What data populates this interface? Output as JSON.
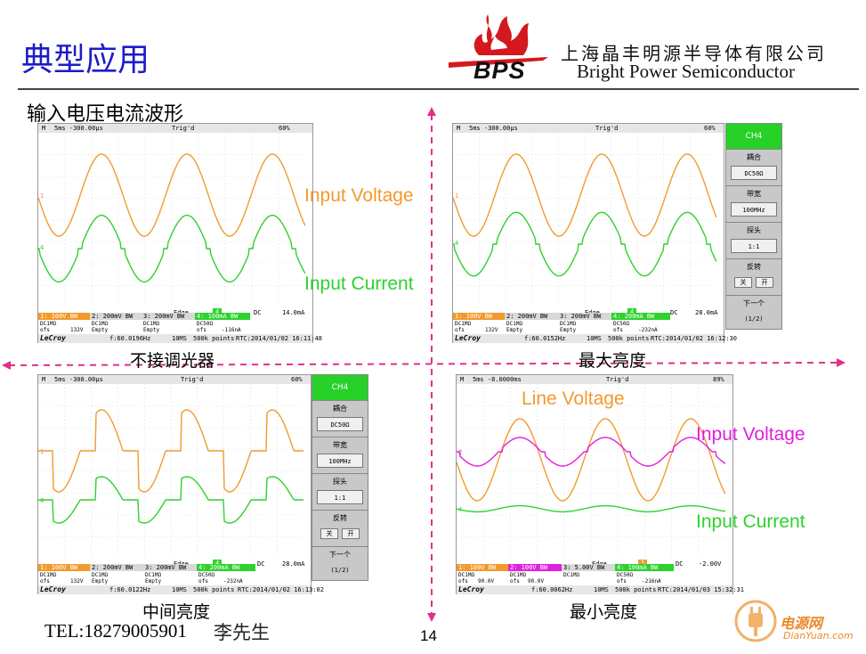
{
  "slide": {
    "title": "典型应用",
    "section": "输入电压电流波形",
    "page_number": "14"
  },
  "company": {
    "logo_text": "BPS",
    "name_cn": "上海晶丰明源半导体有限公司",
    "name_en": "Bright Power Semiconductor"
  },
  "contact": {
    "tel": "TEL:18279005901",
    "name": "李先生"
  },
  "watermark": {
    "name": "电源网",
    "url": "DianYuan.com"
  },
  "colors": {
    "title_blue": "#1c1cc8",
    "orange_trace": "#f29a2e",
    "green_trace": "#2ed12e",
    "magenta_trace": "#e020e0",
    "axis_pink": "#e0308a"
  },
  "panels": [
    {
      "caption": "不接调光器",
      "scope": {
        "timebase": "5ms  -300.00µs",
        "trig": "Trig'd",
        "battery": "60%",
        "edge": "Edge",
        "edge_ch": "4",
        "coupling": "DC",
        "level": "14.0mA",
        "ch_bar": [
          "1: 100V BW",
          "2: 200mV BW",
          "3: 200mV BW",
          "4: 100mA BW"
        ],
        "cells": [
          "DC1MΩ",
          "DC1MΩ",
          "DC1MΩ",
          "DC50Ω",
          "ofs",
          "132V",
          "Empty",
          "Empty",
          "ofs",
          "-116nA"
        ],
        "freq": "f:60.0196Hz",
        "mem": "10MS",
        "points": "500k points",
        "rtc": "RTC:2014/01/02 16:11:48",
        "brand": "LeCroy"
      },
      "labels": [
        "Input Voltage",
        "Input Current"
      ]
    },
    {
      "caption": "最大亮度",
      "scope": {
        "timebase": "5ms  -300.00µs",
        "trig": "Trig'd",
        "battery": "60%",
        "edge": "Edge",
        "edge_ch": "4",
        "coupling": "DC",
        "level": "28.0mA",
        "ch_bar": [
          "1: 100V BW",
          "2: 200mV BW",
          "3: 200mV BW",
          "4: 200mA BW"
        ],
        "cells": [
          "DC1MΩ",
          "DC1MΩ",
          "DC1MΩ",
          "DC50Ω",
          "ofs",
          "132V",
          "Empty",
          "Empty",
          "ofs",
          "-232nA"
        ],
        "freq": "f:60.0152Hz",
        "mem": "10MS",
        "points": "500k points",
        "rtc": "RTC:2014/01/02 16:12:30",
        "brand": "LeCroy"
      },
      "menu": {
        "head": "CH4",
        "items": [
          {
            "label": "耦合",
            "value": "DC50Ω"
          },
          {
            "label": "带宽",
            "value": "100MHz"
          },
          {
            "label": "探头",
            "value": "1:1"
          },
          {
            "label": "反转",
            "btn1": "关",
            "btn2": "开"
          },
          {
            "label": "下一个",
            "value": "(1/2)"
          }
        ]
      }
    },
    {
      "caption": "中间亮度",
      "scope": {
        "timebase": "5ms  -300.00µs",
        "trig": "Trig'd",
        "battery": "60%",
        "edge": "Edge",
        "edge_ch": "4",
        "coupling": "DC",
        "level": "28.0mA",
        "ch_bar": [
          "1: 100V BW",
          "2: 200mV BW",
          "3: 200mV BW",
          "4: 200mA BW"
        ],
        "cells": [
          "DC1MΩ",
          "DC1MΩ",
          "DC1MΩ",
          "DC50Ω",
          "ofs",
          "132V",
          "Empty",
          "Empty",
          "ofs",
          "-232nA"
        ],
        "freq": "f:60.0122Hz",
        "mem": "10MS",
        "points": "500k points",
        "rtc": "RTC:2014/01/02 16:13:02",
        "brand": "LeCroy"
      },
      "menu": {
        "head": "CH4",
        "items": [
          {
            "label": "耦合",
            "value": "DC50Ω"
          },
          {
            "label": "带宽",
            "value": "100MHz"
          },
          {
            "label": "探头",
            "value": "1:1"
          },
          {
            "label": "反转",
            "btn1": "关",
            "btn2": "开"
          },
          {
            "label": "下一个",
            "value": "(1/2)"
          }
        ]
      }
    },
    {
      "caption": "最小亮度",
      "scope": {
        "timebase": "5ms  -8.0000ms",
        "trig": "Trig'd",
        "battery": "89%",
        "edge": "Edge",
        "edge_ch": "1",
        "coupling": "DC",
        "level": "-2.00V",
        "ch_bar": [
          "1: 100V BW",
          "2: 100V BW",
          "3: 5.00V BW",
          "4: 100mA BW"
        ],
        "cells": [
          "DC1MΩ",
          "DC1MΩ",
          "DC1MΩ",
          "DC50Ω",
          "ofs",
          "90.0V",
          "ofs",
          "90.0V",
          "ofs",
          "-216nA"
        ],
        "freq": "f:60.0062Hz",
        "mem": "10MS",
        "points": "500k points",
        "rtc": "RTC:2014/01/03 15:32:31",
        "brand": "LeCroy"
      },
      "labels": [
        "Line Voltage",
        "Input Voltage",
        "Input Current"
      ]
    }
  ]
}
